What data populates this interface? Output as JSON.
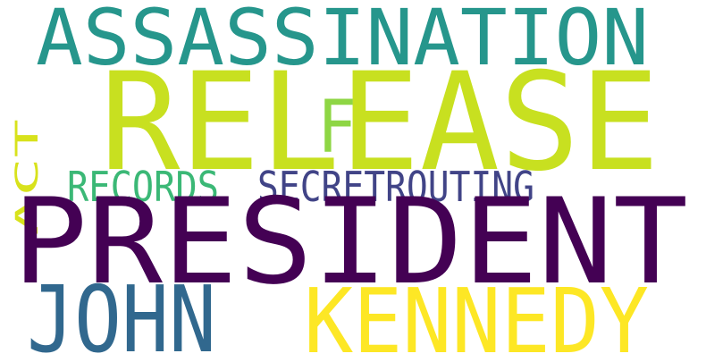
{
  "words": [
    {
      "text": "RELEASE",
      "color": "#c8e020"
    },
    {
      "text": "ASSASSINATION",
      "color": "#26968c"
    },
    {
      "text": "F",
      "color": "#8ed644"
    },
    {
      "text": "ACT",
      "color": "#d8e21c"
    },
    {
      "text": "RECORDS",
      "color": "#3bb876"
    },
    {
      "text": "SECRETROUTING",
      "color": "#414487"
    },
    {
      "text": "PRESIDENT",
      "color": "#440154"
    },
    {
      "text": "JOHN",
      "color": "#31688e"
    },
    {
      "text": "KENNEDY",
      "color": "#fde725"
    }
  ]
}
